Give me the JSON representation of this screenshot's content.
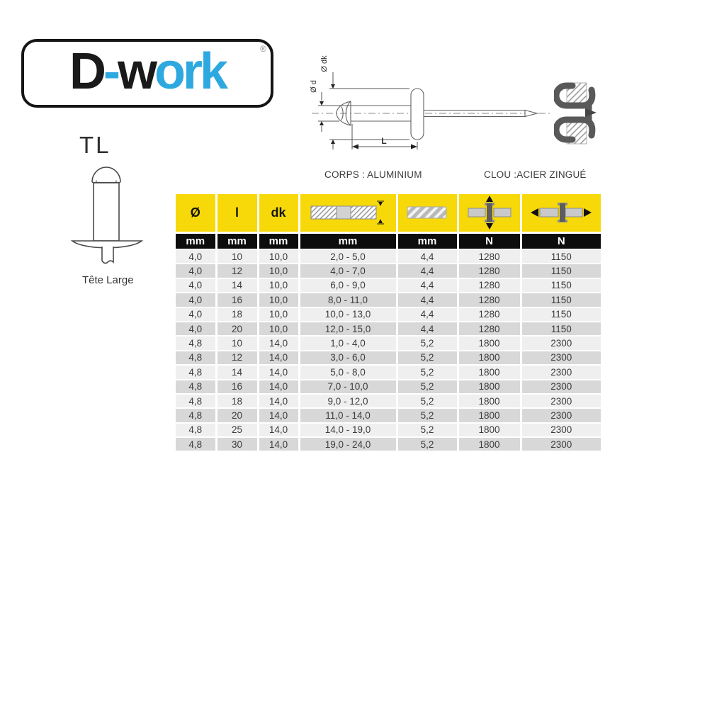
{
  "logo": {
    "parts": [
      {
        "text": "D",
        "tone": "dark"
      },
      {
        "text": "-",
        "tone": "blue"
      },
      {
        "text": "w",
        "tone": "dark"
      },
      {
        "text": "ork",
        "tone": "blue"
      }
    ],
    "registered": "®"
  },
  "product": {
    "code": "TL",
    "head_caption": "Tête Large"
  },
  "tech_drawing": {
    "label_dk": "Ø dk",
    "label_d": "Ø d",
    "label_length": "L"
  },
  "materials": {
    "body": "CORPS : ALUMINIUM",
    "nail": "CLOU :ACIER ZINGUÉ"
  },
  "table": {
    "symbols": [
      "Ø",
      "l",
      "dk"
    ],
    "header_icons": [
      "grip-range-icon",
      "drill-diameter-icon",
      "shear-strength-icon",
      "tensile-strength-icon"
    ],
    "units": [
      "mm",
      "mm",
      "mm",
      "mm",
      "mm",
      "N",
      "N"
    ],
    "rows": [
      [
        "4,0",
        "10",
        "10,0",
        "2,0 - 5,0",
        "4,4",
        "1280",
        "1150"
      ],
      [
        "4,0",
        "12",
        "10,0",
        "4,0 - 7,0",
        "4,4",
        "1280",
        "1150"
      ],
      [
        "4,0",
        "14",
        "10,0",
        "6,0 - 9,0",
        "4,4",
        "1280",
        "1150"
      ],
      [
        "4,0",
        "16",
        "10,0",
        "8,0 - 11,0",
        "4,4",
        "1280",
        "1150"
      ],
      [
        "4,0",
        "18",
        "10,0",
        "10,0 - 13,0",
        "4,4",
        "1280",
        "1150"
      ],
      [
        "4,0",
        "20",
        "10,0",
        "12,0 - 15,0",
        "4,4",
        "1280",
        "1150"
      ],
      [
        "4,8",
        "10",
        "14,0",
        "1,0 - 4,0",
        "5,2",
        "1800",
        "2300"
      ],
      [
        "4,8",
        "12",
        "14,0",
        "3,0 - 6,0",
        "5,2",
        "1800",
        "2300"
      ],
      [
        "4,8",
        "14",
        "14,0",
        "5,0 - 8,0",
        "5,2",
        "1800",
        "2300"
      ],
      [
        "4,8",
        "16",
        "14,0",
        "7,0 - 10,0",
        "5,2",
        "1800",
        "2300"
      ],
      [
        "4,8",
        "18",
        "14,0",
        "9,0 - 12,0",
        "5,2",
        "1800",
        "2300"
      ],
      [
        "4,8",
        "20",
        "14,0",
        "11,0 - 14,0",
        "5,2",
        "1800",
        "2300"
      ],
      [
        "4,8",
        "25",
        "14,0",
        "14,0 - 19,0",
        "5,2",
        "1800",
        "2300"
      ],
      [
        "4,8",
        "30",
        "14,0",
        "19,0 - 24,0",
        "5,2",
        "1800",
        "2300"
      ]
    ]
  },
  "colors": {
    "accent_yellow": "#F7D90A",
    "header_black": "#0D0D0D",
    "logo_blue": "#2EA9E0",
    "logo_black": "#1A1A1A",
    "row_light": "#EFEFEF",
    "row_dark": "#D8D8D8"
  }
}
